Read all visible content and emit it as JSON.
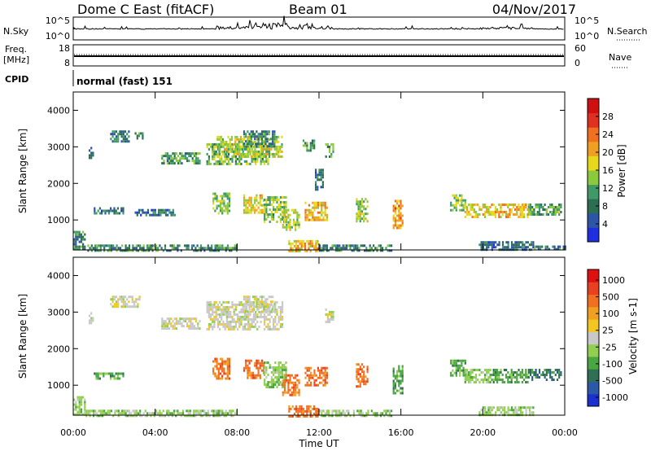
{
  "header": {
    "title": "Dome C East (fitACF)",
    "beam": "Beam 01",
    "date": "04/Nov/2017"
  },
  "status_panel": {
    "nsky_label": "N.Sky",
    "nsky_ticks": [
      "10^5",
      "10^0"
    ],
    "nsearch_label": "N.Search",
    "freq_label": "Freq.",
    "freq_unit": "[MHz]",
    "freq_ticks": [
      "18",
      "8"
    ],
    "nave_ticks": [
      "60",
      "0"
    ],
    "nave_label": "Nave",
    "cpid_label": "CPID",
    "cpid_value": "normal (fast) 151"
  },
  "colors": {
    "power": [
      "#1f2fe0",
      "#2c55a8",
      "#2c6e52",
      "#3f9a68",
      "#8cc93c",
      "#e8d81c",
      "#f0a020",
      "#f07020",
      "#e03020",
      "#d01010"
    ],
    "velocity": [
      "#1c2fd0",
      "#2c58a8",
      "#2f7055",
      "#4aa640",
      "#90cf50",
      "#c8c8c8",
      "#f2c820",
      "#f0a020",
      "#f07020",
      "#e84020",
      "#e01010"
    ]
  },
  "chart_data": [
    {
      "type": "heatmap",
      "name": "power",
      "ylabel": "Slant Range [km]",
      "ylim": [
        180,
        4500
      ],
      "y_ticks": [
        "4000",
        "3000",
        "2000",
        "1000"
      ],
      "xlim": [
        0,
        24
      ],
      "colorbar_label": "Power [dB]",
      "colorbar_ticks": [
        "28",
        "24",
        "20",
        "16",
        "12",
        "8",
        "4"
      ],
      "colorbar_range": [
        0,
        32
      ],
      "regions": [
        {
          "t": [
            0.75,
            0.95
          ],
          "r": [
            2700,
            3000
          ],
          "value": 7
        },
        {
          "t": [
            1.8,
            2.7
          ],
          "r": [
            3150,
            3450
          ],
          "value": 7
        },
        {
          "t": [
            3.0,
            3.4
          ],
          "r": [
            3200,
            3400
          ],
          "value": 8
        },
        {
          "t": [
            4.3,
            6.2
          ],
          "r": [
            2550,
            2850
          ],
          "value": 10
        },
        {
          "t": [
            6.5,
            9.5
          ],
          "r": [
            2550,
            3100
          ],
          "value": 13
        },
        {
          "t": [
            7.0,
            10.2
          ],
          "r": [
            2700,
            3300
          ],
          "value": 16
        },
        {
          "t": [
            8.3,
            9.8
          ],
          "r": [
            3000,
            3450
          ],
          "value": 9
        },
        {
          "t": [
            11.2,
            11.8
          ],
          "r": [
            2900,
            3200
          ],
          "value": 10
        },
        {
          "t": [
            12.3,
            12.7
          ],
          "r": [
            2700,
            3100
          ],
          "value": 11
        },
        {
          "t": [
            11.8,
            12.2
          ],
          "r": [
            1800,
            2400
          ],
          "value": 6
        },
        {
          "t": [
            6.8,
            7.6
          ],
          "r": [
            1200,
            1750
          ],
          "value": 14
        },
        {
          "t": [
            8.3,
            9.3
          ],
          "r": [
            1200,
            1700
          ],
          "value": 18
        },
        {
          "t": [
            9.3,
            10.4
          ],
          "r": [
            950,
            1650
          ],
          "value": 14
        },
        {
          "t": [
            10.2,
            11.0
          ],
          "r": [
            750,
            1300
          ],
          "value": 16
        },
        {
          "t": [
            11.3,
            12.4
          ],
          "r": [
            1000,
            1500
          ],
          "value": 20
        },
        {
          "t": [
            13.8,
            14.4
          ],
          "r": [
            950,
            1600
          ],
          "value": 15
        },
        {
          "t": [
            15.6,
            16.1
          ],
          "r": [
            800,
            1550
          ],
          "value": 22
        },
        {
          "t": [
            18.4,
            19.1
          ],
          "r": [
            1250,
            1700
          ],
          "value": 14
        },
        {
          "t": [
            19.1,
            20.4
          ],
          "r": [
            1050,
            1450
          ],
          "value": 18
        },
        {
          "t": [
            20.4,
            22.2
          ],
          "r": [
            1050,
            1450
          ],
          "value": 20
        },
        {
          "t": [
            22.2,
            23.8
          ],
          "r": [
            1150,
            1450
          ],
          "value": 11
        },
        {
          "t": [
            1.0,
            2.4
          ],
          "r": [
            1150,
            1350
          ],
          "value": 6
        },
        {
          "t": [
            3.0,
            5.0
          ],
          "r": [
            1150,
            1300
          ],
          "value": 6
        },
        {
          "t": [
            0.0,
            0.6
          ],
          "r": [
            180,
            700
          ],
          "value": 8
        },
        {
          "t": [
            0.6,
            8.0
          ],
          "r": [
            180,
            330
          ],
          "value": 9
        },
        {
          "t": [
            10.5,
            11.9
          ],
          "r": [
            180,
            450
          ],
          "value": 20
        },
        {
          "t": [
            12.0,
            15.5
          ],
          "r": [
            180,
            330
          ],
          "value": 8
        },
        {
          "t": [
            19.8,
            22.5
          ],
          "r": [
            180,
            420
          ],
          "value": 6
        },
        {
          "t": [
            22.5,
            24.0
          ],
          "r": [
            180,
            300
          ],
          "value": 8
        }
      ]
    },
    {
      "type": "heatmap",
      "name": "velocity",
      "ylabel": "Slant Range [km]",
      "ylim": [
        180,
        4500
      ],
      "y_ticks": [
        "4000",
        "3000",
        "2000",
        "1000"
      ],
      "xlim": [
        0,
        24
      ],
      "xlabel": "Time UT",
      "x_ticks": [
        "00:00",
        "04:00",
        "08:00",
        "12:00",
        "16:00",
        "20:00",
        "00:00"
      ],
      "colorbar_label": "Velocity [m s-1]",
      "colorbar_ticks": [
        "1000",
        "500",
        "100",
        "25",
        "-25",
        "-100",
        "-500",
        "-1000"
      ],
      "regions": [
        {
          "t": [
            0.75,
            0.95
          ],
          "r": [
            2700,
            3000
          ],
          "value": 5
        },
        {
          "t": [
            1.8,
            3.2
          ],
          "r": [
            3150,
            3450
          ],
          "value": 5
        },
        {
          "t": [
            4.3,
            6.2
          ],
          "r": [
            2550,
            2850
          ],
          "value": 5
        },
        {
          "t": [
            6.5,
            10.2
          ],
          "r": [
            2550,
            3300
          ],
          "value": 5
        },
        {
          "t": [
            8.3,
            9.8
          ],
          "r": [
            3000,
            3450
          ],
          "value": 5
        },
        {
          "t": [
            12.3,
            12.7
          ],
          "r": [
            2700,
            3100
          ],
          "value": 5
        },
        {
          "t": [
            6.8,
            7.6
          ],
          "r": [
            1200,
            1750
          ],
          "value": 8
        },
        {
          "t": [
            8.3,
            9.3
          ],
          "r": [
            1200,
            1700
          ],
          "value": 8
        },
        {
          "t": [
            9.3,
            10.4
          ],
          "r": [
            950,
            1650
          ],
          "value": 4
        },
        {
          "t": [
            10.2,
            11.0
          ],
          "r": [
            750,
            1300
          ],
          "value": 8
        },
        {
          "t": [
            11.3,
            12.4
          ],
          "r": [
            1000,
            1500
          ],
          "value": 8
        },
        {
          "t": [
            13.8,
            14.4
          ],
          "r": [
            950,
            1600
          ],
          "value": 8
        },
        {
          "t": [
            15.6,
            16.1
          ],
          "r": [
            800,
            1550
          ],
          "value": 3
        },
        {
          "t": [
            18.4,
            19.1
          ],
          "r": [
            1250,
            1700
          ],
          "value": 3
        },
        {
          "t": [
            19.1,
            20.4
          ],
          "r": [
            1050,
            1450
          ],
          "value": 4
        },
        {
          "t": [
            20.4,
            22.2
          ],
          "r": [
            1050,
            1450
          ],
          "value": 3
        },
        {
          "t": [
            22.2,
            23.8
          ],
          "r": [
            1150,
            1450
          ],
          "value": 2
        },
        {
          "t": [
            1.0,
            2.4
          ],
          "r": [
            1150,
            1350
          ],
          "value": 3
        },
        {
          "t": [
            0.0,
            0.6
          ],
          "r": [
            180,
            700
          ],
          "value": 4
        },
        {
          "t": [
            0.6,
            8.0
          ],
          "r": [
            180,
            330
          ],
          "value": 4
        },
        {
          "t": [
            10.5,
            11.9
          ],
          "r": [
            180,
            450
          ],
          "value": 8
        },
        {
          "t": [
            12.0,
            15.5
          ],
          "r": [
            180,
            330
          ],
          "value": 4
        },
        {
          "t": [
            19.8,
            22.5
          ],
          "r": [
            180,
            420
          ],
          "value": 4
        }
      ]
    }
  ]
}
